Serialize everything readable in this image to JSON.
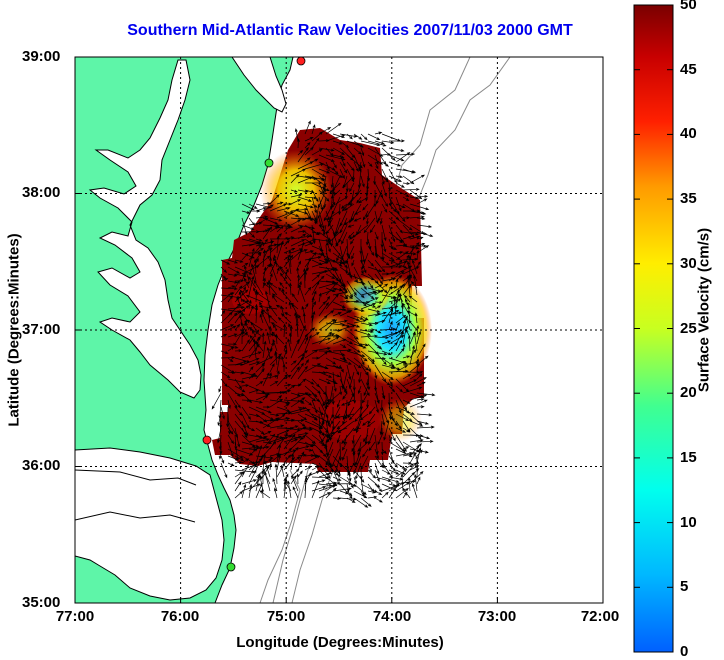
{
  "title": "Southern Mid-Atlantic Raw Velocities 2007/11/03 2000 GMT",
  "axes": {
    "xlabel": "Longitude (Degrees:Minutes)",
    "ylabel": "Latitude (Degrees:Minutes)",
    "xticks": [
      "77:00",
      "76:00",
      "75:00",
      "74:00",
      "73:00",
      "72:00"
    ],
    "yticks": [
      "39:00",
      "38:00",
      "37:00",
      "36:00",
      "35:00"
    ],
    "xlim": [
      -77,
      -72
    ],
    "ylim": [
      35,
      39
    ]
  },
  "colorbar": {
    "label": "Surface Velocity (cm/s)",
    "ticks": [
      "50",
      "45",
      "40",
      "35",
      "30",
      "25",
      "20",
      "15",
      "10",
      "5",
      "0"
    ],
    "range": [
      0,
      50
    ]
  },
  "colors": {
    "title": "#0000ee",
    "land": "#5ef5a8",
    "coast": "#000000",
    "bathymetry": "#8a8a8a",
    "arrows": "#000000",
    "grid": "#000000"
  },
  "station_markers": [
    {
      "color": "#ff2020"
    },
    {
      "color": "#33dd33"
    },
    {
      "color": "#ff2020"
    },
    {
      "color": "#33dd33"
    }
  ]
}
